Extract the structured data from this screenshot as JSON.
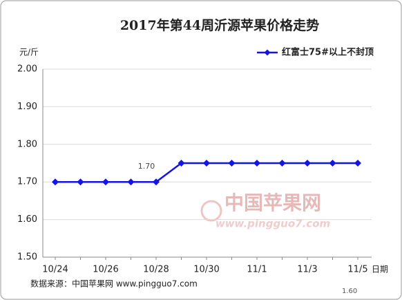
{
  "chart_data": {
    "type": "line",
    "title": "2017年第44周沂源苹果价格走势",
    "y_label": "元/斤",
    "x_label": "日期",
    "categories": [
      "10/24",
      null,
      "10/26",
      null,
      "10/28",
      null,
      "10/30",
      null,
      "11/1",
      null,
      "11/3",
      null,
      "11/5"
    ],
    "series": [
      {
        "name": "红富士75#以上不封顶",
        "color": "#1414e6",
        "values": [
          1.7,
          1.7,
          1.7,
          1.7,
          1.7,
          1.75,
          1.75,
          1.75,
          1.75,
          1.75,
          1.75,
          1.75,
          1.75
        ]
      }
    ],
    "ylim": [
      1.5,
      2.0
    ],
    "yticks": [
      {
        "value": 1.5,
        "label": "1.50"
      },
      {
        "value": 1.6,
        "label": "1.60"
      },
      {
        "value": 1.7,
        "label": "1.70"
      },
      {
        "value": 1.8,
        "label": "1.80"
      },
      {
        "value": 1.9,
        "label": "1.90"
      },
      {
        "value": 2.0,
        "label": "2.00"
      }
    ],
    "grid": true,
    "legend": "top-right",
    "annotations": [
      "1.70",
      "1.60"
    ],
    "watermark": [
      "中国苹果网",
      "www.pingguo7.com"
    ],
    "source": "数据来源：中国苹果网 www.pingguo7.com"
  }
}
